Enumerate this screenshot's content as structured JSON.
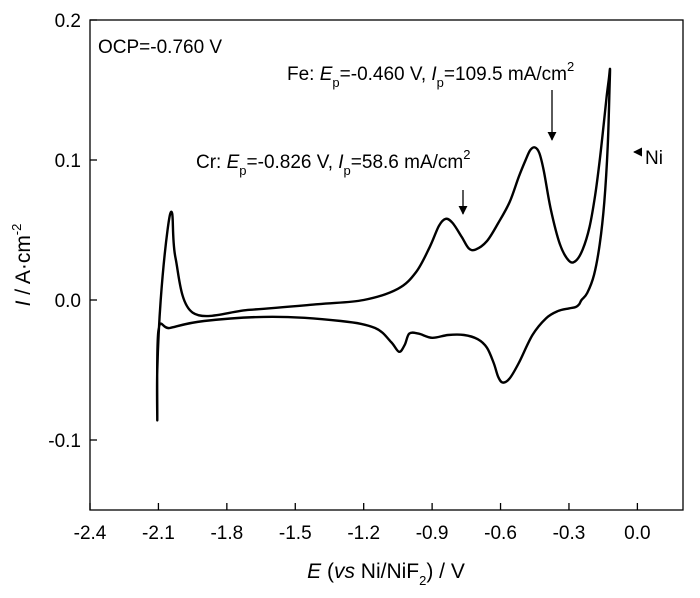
{
  "chart_data": {
    "type": "line",
    "title": "",
    "xlabel": {
      "var": "E",
      "open": " (",
      "vs": "vs",
      "ref": " Ni/NiF",
      "ref_sub": "2",
      "close": ") / V"
    },
    "ylabel": {
      "var": "I",
      "unit": " / A·cm",
      "unit_sup": "-2"
    },
    "xlim": [
      -2.4,
      0.2
    ],
    "ylim": [
      -0.15,
      0.2
    ],
    "x_ticks": [
      -2.4,
      -2.1,
      -1.8,
      -1.5,
      -1.2,
      -0.9,
      -0.6,
      -0.3,
      0.0
    ],
    "x_tick_labels": [
      "-2.4",
      "-2.1",
      "-1.8",
      "-1.5",
      "-1.2",
      "-0.9",
      "-0.6",
      "-0.3",
      "0.0"
    ],
    "y_ticks": [
      -0.1,
      0.0,
      0.1,
      0.2
    ],
    "y_tick_labels": [
      "-0.1",
      "0.0",
      "0.1",
      "0.2"
    ],
    "grid": false,
    "legend": "none",
    "series": [
      {
        "color": "#000000",
        "x": [
          -2.105,
          -2.105,
          -2.09,
          -2.06,
          -2.04,
          -2.025,
          -1.95,
          -1.7,
          -1.4,
          -1.2,
          -1.05,
          -0.97,
          -0.91,
          -0.87,
          -0.84,
          -0.81,
          -0.77,
          -0.74,
          -0.71,
          -0.66,
          -0.61,
          -0.56,
          -0.52,
          -0.49,
          -0.47,
          -0.45,
          -0.43,
          -0.41,
          -0.38,
          -0.34,
          -0.3,
          -0.27,
          -0.24,
          -0.21,
          -0.185,
          -0.165,
          -0.148,
          -0.135,
          -0.125,
          -0.12,
          -0.122,
          -0.13,
          -0.145,
          -0.165,
          -0.19,
          -0.22,
          -0.245,
          -0.255,
          -0.27,
          -0.3,
          -0.35,
          -0.4,
          -0.46,
          -0.52,
          -0.56,
          -0.59,
          -0.61,
          -0.63,
          -0.66,
          -0.7,
          -0.76,
          -0.83,
          -0.9,
          -0.96,
          -1.0,
          -1.02,
          -1.045,
          -1.08,
          -1.15,
          -1.3,
          -1.6,
          -1.9,
          -2.05,
          -2.1,
          -2.105
        ],
        "y": [
          -0.086,
          -0.05,
          0.0,
          0.05,
          0.062,
          0.03,
          -0.009,
          -0.007,
          -0.003,
          0.0,
          0.008,
          0.02,
          0.038,
          0.053,
          0.058,
          0.055,
          0.045,
          0.037,
          0.036,
          0.042,
          0.055,
          0.07,
          0.088,
          0.1,
          0.107,
          0.109,
          0.105,
          0.092,
          0.065,
          0.04,
          0.028,
          0.028,
          0.036,
          0.052,
          0.075,
          0.1,
          0.125,
          0.145,
          0.158,
          0.165,
          0.152,
          0.11,
          0.07,
          0.04,
          0.018,
          0.005,
          0.0,
          -0.003,
          -0.005,
          -0.006,
          -0.008,
          -0.013,
          -0.025,
          -0.045,
          -0.056,
          -0.059,
          -0.055,
          -0.045,
          -0.034,
          -0.028,
          -0.025,
          -0.025,
          -0.027,
          -0.024,
          -0.024,
          -0.032,
          -0.037,
          -0.03,
          -0.02,
          -0.015,
          -0.012,
          -0.015,
          -0.02,
          -0.022,
          -0.086
        ]
      }
    ],
    "annotations": {
      "ocp": "OCP=-0.760 V",
      "fe": {
        "head": "Fe: ",
        "E": "E",
        "p": "p",
        "e_val": "=-0.460 V, ",
        "I": "I",
        "i_val": "=109.5 mA/cm",
        "sup": "2"
      },
      "cr": {
        "head": "Cr: ",
        "E": "E",
        "p": "p",
        "e_val": "=-0.826 V, ",
        "I": "I",
        "i_val": "=58.6 mA/cm",
        "sup": "2"
      },
      "ni": "Ni"
    }
  }
}
